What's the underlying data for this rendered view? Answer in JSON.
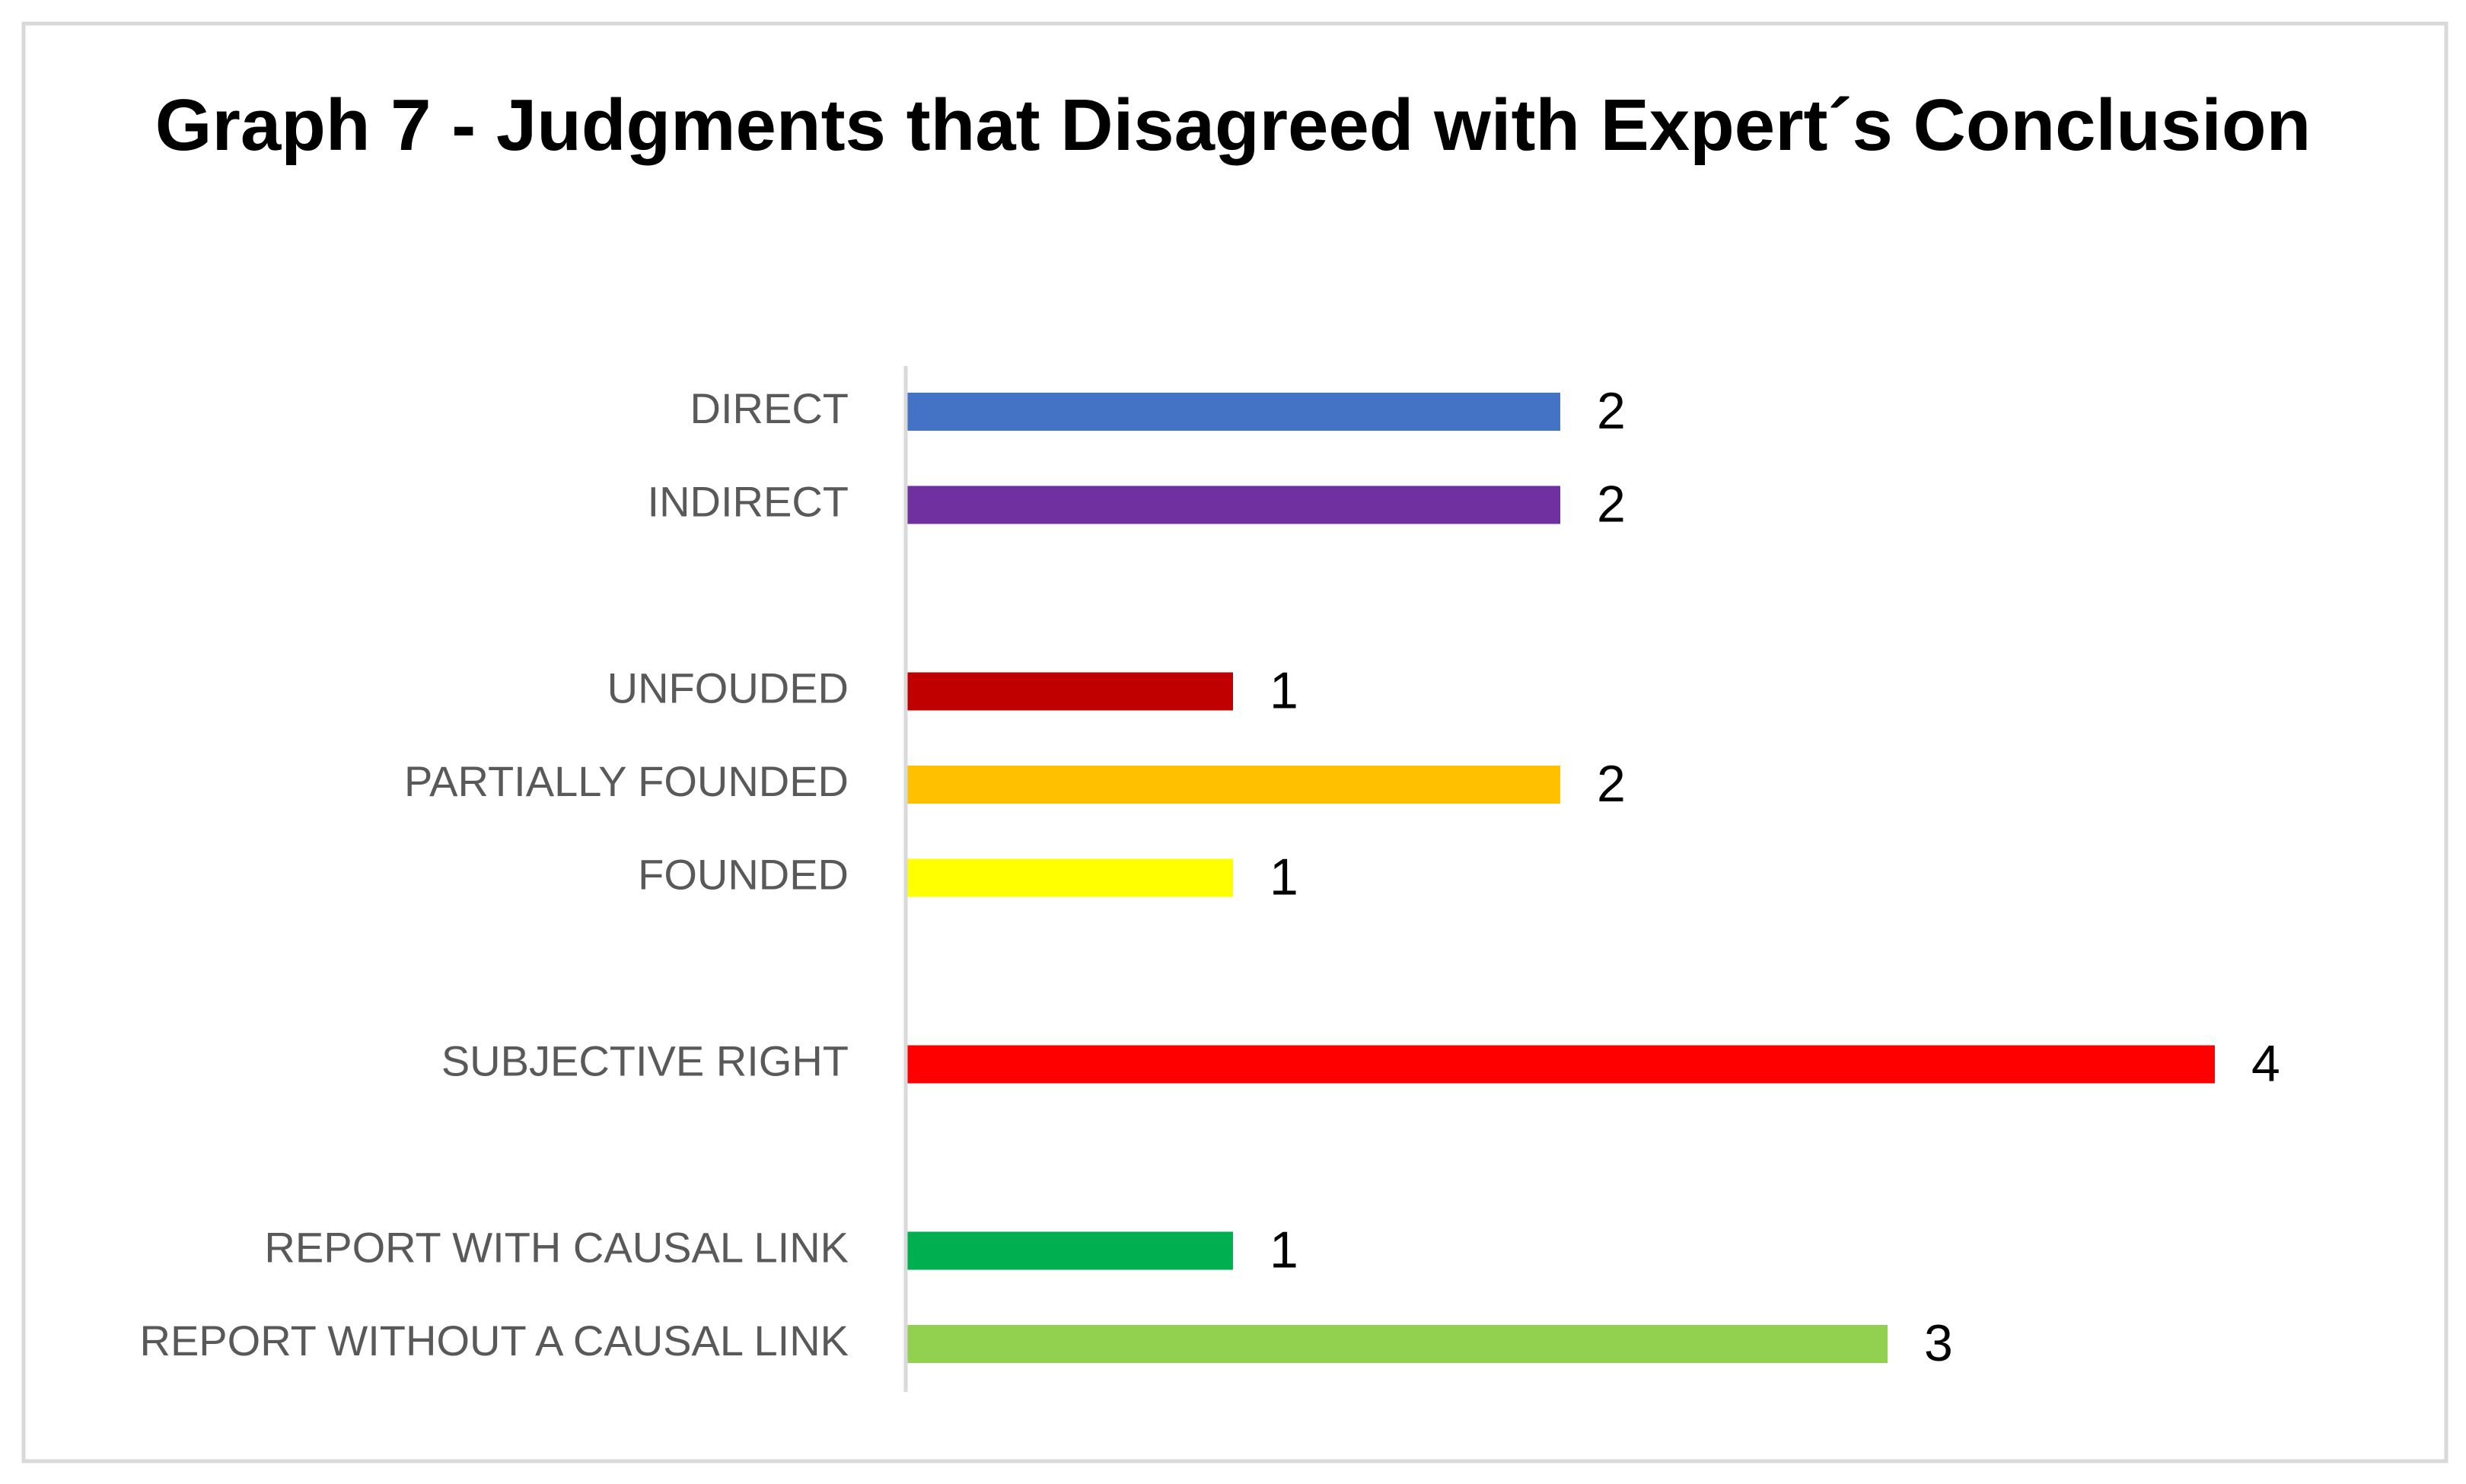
{
  "chart_data": {
    "type": "bar",
    "orientation": "horizontal",
    "title": "Graph 7 - Judgments that Disagreed with Expert´s Conclusion",
    "categories": [
      "DIRECT",
      "INDIRECT",
      null,
      "UNFOUDED",
      "PARTIALLY FOUNDED",
      "FOUNDED",
      null,
      "SUBJECTIVE RIGHT",
      null,
      "REPORT WITH CAUSAL LINK",
      "REPORT WITHOUT A CAUSAL LINK"
    ],
    "values": [
      2,
      2,
      null,
      1,
      2,
      1,
      null,
      4,
      null,
      1,
      3
    ],
    "colors": [
      "#4472c4",
      "#7030a0",
      null,
      "#c00000",
      "#ffc000",
      "#ffff00",
      null,
      "#ff0000",
      null,
      "#00b050",
      "#92d050"
    ],
    "xlim": [
      0,
      4.5
    ],
    "data_labels": true
  }
}
